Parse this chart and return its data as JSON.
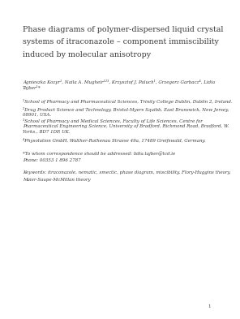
{
  "bg_color": "#ffffff",
  "text_color": "#3a3a3a",
  "title_lines": [
    "Phase diagrams of polymer-dispersed liquid crystal",
    "systems of itraconazole – component immiscibility",
    "induced by molecular anisotropy"
  ],
  "authors_line1": "Agnieszka Kozyr¹, Naila A. Mugheir¹²³, Krzysztof J. Paluch¹, Grzegorz Garbacz⁴, Lidia",
  "authors_line2": "Tajber¹*",
  "affil1": "¹School of Pharmacy and Pharmaceutical Sciences, Trinity College Dublin, Dublin 2, Ireland.",
  "affil2a": "²Drug Product Science and Technology, Bristol-Myers Squibb, East Brunswick, New Jersey,",
  "affil2b": "08901, USA.",
  "affil3a": "³School of Pharmacy and Medical Sciences, Faculty of Life Sciences, Centre for",
  "affil3b": "Pharmaceutical Engineering Science, University of Bradford, Richmond Road, Bradford, W.",
  "affil3c": "Yorks., BD7 1DP, UK.",
  "affil4": "⁴Physolution GmbH, Walther-Rathenau Strasse 49a, 17489 Greifswald, Germany.",
  "correspondence": "*To whom correspondence should be addressed: lidia.tajber@tcd.ie",
  "phone": "Phone: 00353 1 896 2787",
  "keywords_line1": "Keywords: itraconazole, nematic, smectic, phase diagram, miscibility, Flory-Huggins theory,",
  "keywords_line2": "Maier-Saupe-McMillan theory",
  "page_number": "1",
  "title_fontsize": 6.8,
  "small_fontsize": 4.0,
  "page_num_fontsize": 4.0
}
